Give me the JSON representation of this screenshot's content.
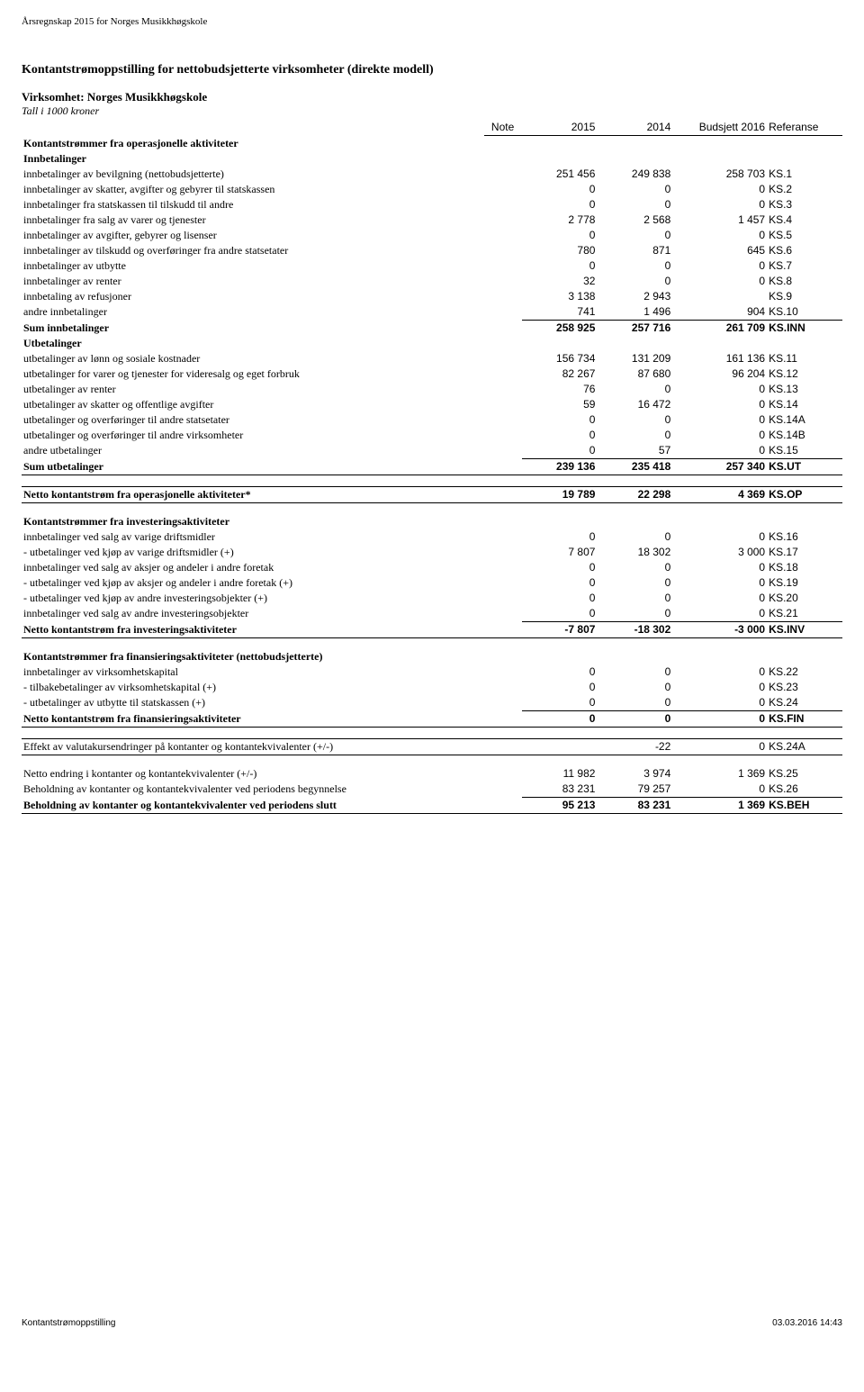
{
  "doc_header": "Årsregnskap 2015 for Norges Musikkhøgskole",
  "title": "Kontantstrømoppstilling for nettobudsjetterte virksomheter (direkte modell)",
  "org_line": "Virksomhet: Norges Musikkhøgskole",
  "unit_line": "Tall i 1000 kroner",
  "columns": {
    "note": "Note",
    "c2015": "2015",
    "c2014": "2014",
    "budget": "Budsjett 2016",
    "ref": "Referanse"
  },
  "sections": {
    "op": {
      "heading": "Kontantstrømmer fra operasjonelle aktiviteter",
      "inn_heading": "Innbetalinger",
      "inn_rows": [
        {
          "label": "innbetalinger av bevilgning (nettobudsjetterte)",
          "v15": "251 456",
          "v14": "249 838",
          "bud": "258 703",
          "ref": "KS.1"
        },
        {
          "label": "innbetalinger av skatter, avgifter og gebyrer til statskassen",
          "v15": "0",
          "v14": "0",
          "bud": "0",
          "ref": "KS.2"
        },
        {
          "label": "innbetalinger fra statskassen til tilskudd til andre",
          "v15": "0",
          "v14": "0",
          "bud": "0",
          "ref": "KS.3"
        },
        {
          "label": "innbetalinger fra salg av varer og tjenester",
          "v15": "2 778",
          "v14": "2 568",
          "bud": "1 457",
          "ref": "KS.4"
        },
        {
          "label": "innbetalinger av avgifter, gebyrer og lisenser",
          "v15": "0",
          "v14": "0",
          "bud": "0",
          "ref": "KS.5"
        },
        {
          "label": "innbetalinger av tilskudd og overføringer fra andre statsetater",
          "v15": "780",
          "v14": "871",
          "bud": "645",
          "ref": "KS.6"
        },
        {
          "label": "innbetalinger av utbytte",
          "v15": "0",
          "v14": "0",
          "bud": "0",
          "ref": "KS.7"
        },
        {
          "label": "innbetalinger av renter",
          "v15": "32",
          "v14": "0",
          "bud": "0",
          "ref": "KS.8"
        },
        {
          "label": "innbetaling av refusjoner",
          "v15": "3 138",
          "v14": "2 943",
          "bud": "",
          "ref": "KS.9"
        },
        {
          "label": "andre innbetalinger",
          "v15": "741",
          "v14": "1 496",
          "bud": "904",
          "ref": "KS.10"
        }
      ],
      "inn_sum": {
        "label": "Sum innbetalinger",
        "v15": "258 925",
        "v14": "257 716",
        "bud": "261 709",
        "ref": "KS.INN"
      },
      "ut_heading": "Utbetalinger",
      "ut_rows": [
        {
          "label": "utbetalinger av lønn og sosiale kostnader",
          "v15": "156 734",
          "v14": "131 209",
          "bud": "161 136",
          "ref": "KS.11"
        },
        {
          "label": "utbetalinger for varer og tjenester for videresalg og eget forbruk",
          "v15": "82 267",
          "v14": "87 680",
          "bud": "96 204",
          "ref": "KS.12"
        },
        {
          "label": "utbetalinger av renter",
          "v15": "76",
          "v14": "0",
          "bud": "0",
          "ref": "KS.13"
        },
        {
          "label": "utbetalinger av skatter og offentlige avgifter",
          "v15": "59",
          "v14": "16 472",
          "bud": "0",
          "ref": "KS.14"
        },
        {
          "label": "utbetalinger og overføringer til andre statsetater",
          "v15": "0",
          "v14": "0",
          "bud": "0",
          "ref": "KS.14A"
        },
        {
          "label": "utbetalinger og overføringer til andre virksomheter",
          "v15": "0",
          "v14": "0",
          "bud": "0",
          "ref": "KS.14B"
        },
        {
          "label": "andre utbetalinger",
          "v15": "0",
          "v14": "57",
          "bud": "0",
          "ref": "KS.15"
        }
      ],
      "ut_sum": {
        "label": "Sum utbetalinger",
        "v15": "239 136",
        "v14": "235 418",
        "bud": "257 340",
        "ref": "KS.UT"
      },
      "net": {
        "label": "Netto kontantstrøm fra operasjonelle aktiviteter*",
        "v15": "19 789",
        "v14": "22 298",
        "bud": "4 369",
        "ref": "KS.OP"
      }
    },
    "inv": {
      "heading": "Kontantstrømmer fra investeringsaktiviteter",
      "rows": [
        {
          "label": "innbetalinger ved salg av varige driftsmidler",
          "v15": "0",
          "v14": "0",
          "bud": "0",
          "ref": "KS.16"
        },
        {
          "label": "- utbetalinger ved kjøp av varige driftsmidler (+)",
          "v15": "7 807",
          "v14": "18 302",
          "bud": "3 000",
          "ref": "KS.17"
        },
        {
          "label": "innbetalinger ved salg av aksjer og andeler i andre foretak",
          "v15": "0",
          "v14": "0",
          "bud": "0",
          "ref": "KS.18"
        },
        {
          "label": "- utbetalinger ved kjøp av aksjer og andeler i andre foretak (+)",
          "v15": "0",
          "v14": "0",
          "bud": "0",
          "ref": "KS.19"
        },
        {
          "label": "- utbetalinger ved kjøp av andre investeringsobjekter (+)",
          "v15": "0",
          "v14": "0",
          "bud": "0",
          "ref": "KS.20"
        },
        {
          "label": "innbetalinger ved salg av andre investeringsobjekter",
          "v15": "0",
          "v14": "0",
          "bud": "0",
          "ref": "KS.21"
        }
      ],
      "net": {
        "label": "Netto kontantstrøm fra investeringsaktiviteter",
        "v15": "-7 807",
        "v14": "-18 302",
        "bud": "-3 000",
        "ref": "KS.INV"
      }
    },
    "fin": {
      "heading": "Kontantstrømmer fra finansieringsaktiviteter (nettobudsjetterte)",
      "rows": [
        {
          "label": "innbetalinger av virksomhetskapital",
          "v15": "0",
          "v14": "0",
          "bud": "0",
          "ref": "KS.22"
        },
        {
          "label": "- tilbakebetalinger av virksomhetskapital (+)",
          "v15": "0",
          "v14": "0",
          "bud": "0",
          "ref": "KS.23"
        },
        {
          "label": "- utbetalinger av utbytte til statskassen (+)",
          "v15": "0",
          "v14": "0",
          "bud": "0",
          "ref": "KS.24"
        }
      ],
      "net": {
        "label": "Netto kontantstrøm fra finansieringsaktiviteter",
        "v15": "0",
        "v14": "0",
        "bud": "0",
        "ref": "KS.FIN"
      }
    },
    "fx": {
      "label": "Effekt av valutakursendringer på kontanter og kontantekvivalenter (+/-)",
      "v15": "",
      "v14": "-22",
      "bud": "0",
      "ref": "KS.24A"
    },
    "closing": [
      {
        "label": "Netto endring i kontanter og kontantekvivalenter (+/-)",
        "v15": "11 982",
        "v14": "3 974",
        "bud": "1 369",
        "ref": "KS.25"
      },
      {
        "label": "Beholdning av kontanter og kontantekvivalenter ved periodens begynnelse",
        "v15": "83 231",
        "v14": "79 257",
        "bud": "0",
        "ref": "KS.26"
      }
    ],
    "closing_sum": {
      "label": "Beholdning av kontanter og kontantekvivalenter ved periodens slutt",
      "v15": "95 213",
      "v14": "83 231",
      "bud": "1 369",
      "ref": "KS.BEH"
    }
  },
  "footer_left": "Kontantstrømoppstilling",
  "footer_right": "03.03.2016 14:43"
}
